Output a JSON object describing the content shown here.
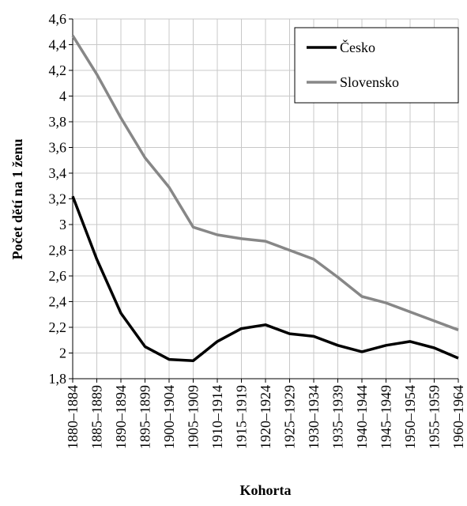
{
  "chart_data": {
    "type": "line",
    "x_label": "Kohorta",
    "y_label": "Počet dětí na 1 ženu",
    "categories": [
      "1880–1884",
      "1885–1889",
      "1890–1894",
      "1895–1899",
      "1900–1904",
      "1905–1909",
      "1910–1914",
      "1915–1919",
      "1920–1924",
      "1925–1929",
      "1930–1934",
      "1935–1939",
      "1940–1944",
      "1945–1949",
      "1950–1954",
      "1955–1959",
      "1960–1964"
    ],
    "series": [
      {
        "name": "Česko",
        "color": "#000000",
        "values": [
          3.22,
          2.73,
          2.31,
          2.05,
          1.95,
          1.94,
          2.09,
          2.19,
          2.22,
          2.15,
          2.13,
          2.06,
          2.01,
          2.06,
          2.09,
          2.04,
          1.96
        ]
      },
      {
        "name": "Slovensko",
        "color": "#878787",
        "values": [
          4.47,
          4.17,
          3.83,
          3.52,
          3.29,
          2.98,
          2.92,
          2.89,
          2.87,
          2.8,
          2.73,
          2.59,
          2.44,
          2.39,
          2.32,
          2.25,
          2.18
        ]
      }
    ],
    "ylim": [
      1.8,
      4.6
    ],
    "yticks": [
      {
        "value": 1.8,
        "label": "1,8"
      },
      2,
      {
        "value": 2.2,
        "label": "2,2"
      },
      {
        "value": 2.4,
        "label": "2,4"
      },
      {
        "value": 2.6,
        "label": "2,6"
      },
      {
        "value": 2.8,
        "label": "2,8"
      },
      3,
      {
        "value": 3.2,
        "label": "3,2"
      },
      {
        "value": 3.4,
        "label": "3,4"
      },
      {
        "value": 3.6,
        "label": "3,6"
      },
      {
        "value": 3.8,
        "label": "3,8"
      },
      4,
      {
        "value": 4.2,
        "label": "4,2"
      },
      {
        "value": 4.4,
        "label": "4,4"
      },
      {
        "value": 4.6,
        "label": "4,6"
      }
    ],
    "grid": true,
    "legend": "upper right"
  }
}
